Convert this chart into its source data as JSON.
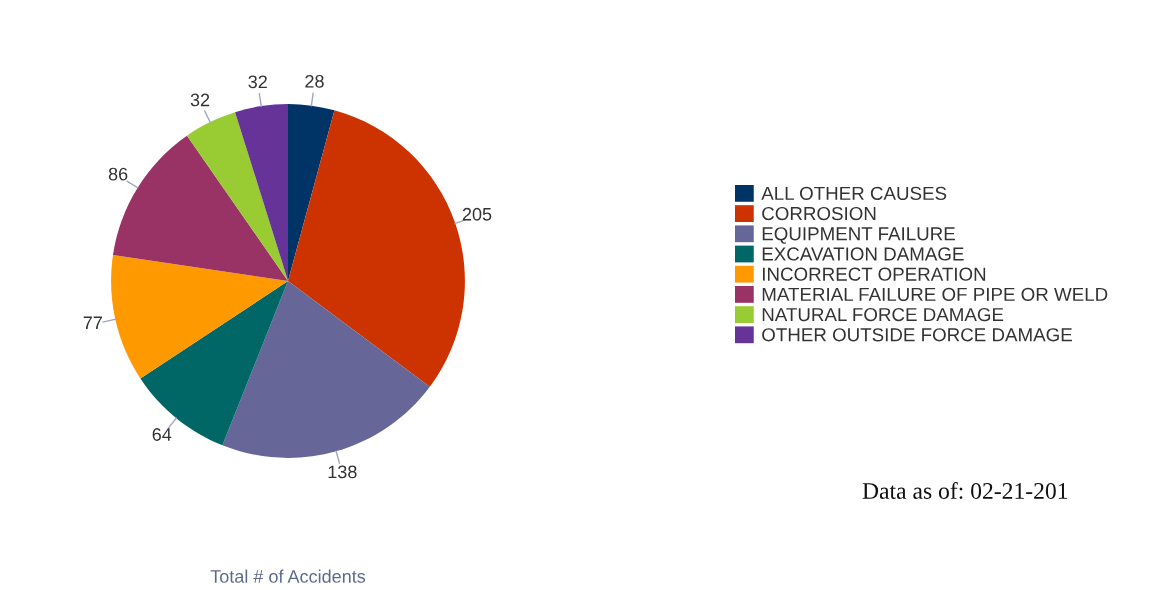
{
  "chart_data": {
    "type": "pie",
    "categories": [
      "ALL OTHER CAUSES",
      "CORROSION",
      "EQUIPMENT FAILURE",
      "EXCAVATION DAMAGE",
      "INCORRECT OPERATION",
      "MATERIAL FAILURE OF PIPE OR WELD",
      "NATURAL FORCE DAMAGE",
      "OTHER OUTSIDE FORCE DAMAGE"
    ],
    "values": [
      28,
      205,
      138,
      64,
      77,
      86,
      32,
      32
    ],
    "colors": [
      "#003366",
      "#cc3300",
      "#666699",
      "#006666",
      "#ff9900",
      "#993366",
      "#99cc33",
      "#663399"
    ],
    "data_labels": true,
    "legend": "right",
    "xlabel": "Total # of Accidents",
    "annotations": [
      "Data as of: 02-21-201"
    ]
  }
}
